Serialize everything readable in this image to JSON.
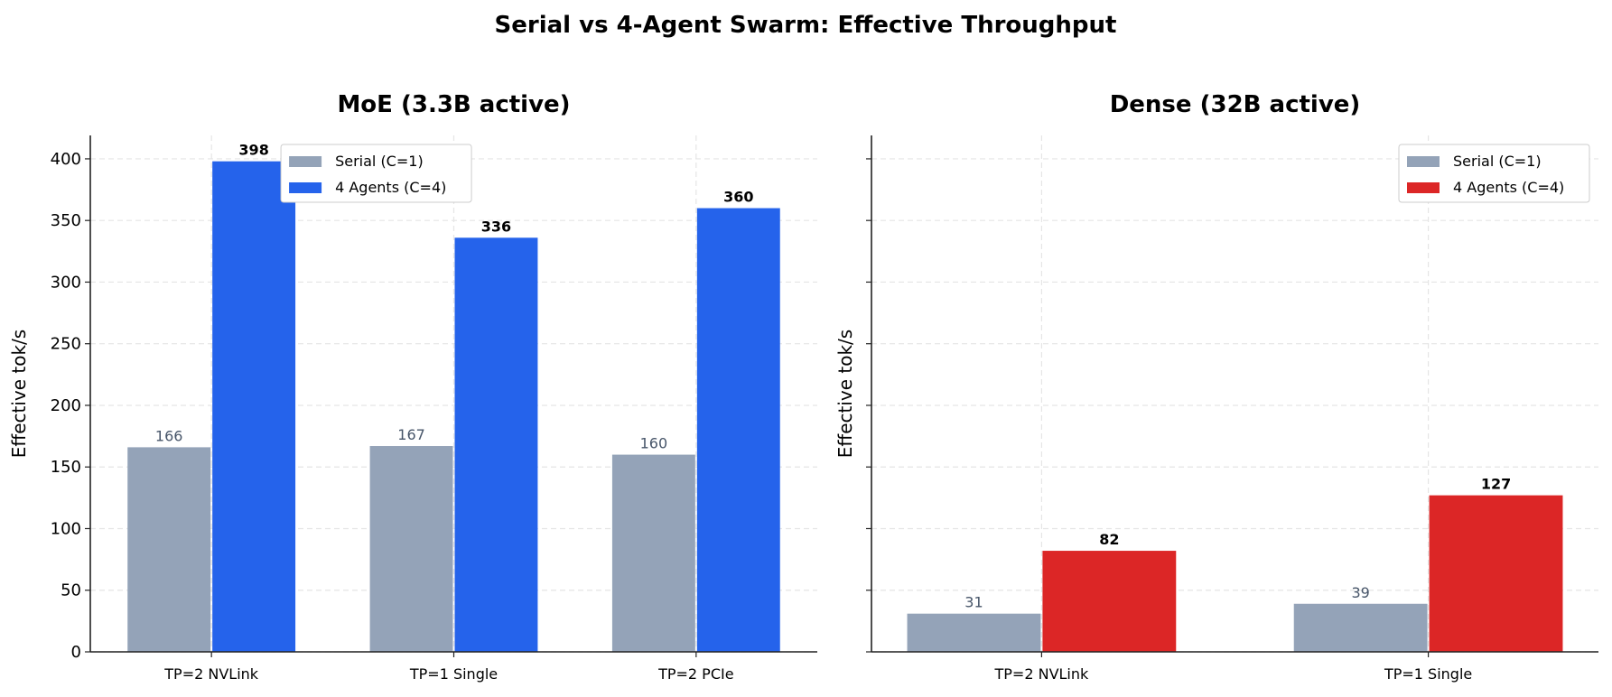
{
  "title": "Serial vs 4-Agent Swarm: Effective Throughput",
  "chart_data": [
    {
      "type": "bar",
      "title": "MoE (3.3B active)",
      "xlabel": "",
      "ylabel": "Effective tok/s",
      "categories": [
        "TP=2 NVLink",
        "TP=1 Single",
        "TP=2 PCIe"
      ],
      "ylim": [
        0,
        419
      ],
      "yticks": [
        0,
        50,
        100,
        150,
        200,
        250,
        300,
        350,
        400
      ],
      "show_ytick_labels": true,
      "grid": true,
      "legend_position": "top-center",
      "series": [
        {
          "name": "Serial (C=1)",
          "color": "#94a3b8",
          "values": [
            166,
            167,
            160
          ],
          "labels": [
            "166",
            "167",
            "160"
          ]
        },
        {
          "name": "4 Agents (C=4)",
          "color": "#2563eb",
          "values": [
            398,
            336,
            360
          ],
          "labels": [
            "398",
            "336",
            "360"
          ]
        }
      ]
    },
    {
      "type": "bar",
      "title": "Dense (32B active)",
      "xlabel": "",
      "ylabel": "Effective tok/s",
      "categories": [
        "TP=2 NVLink",
        "TP=1 Single"
      ],
      "ylim": [
        0,
        419
      ],
      "yticks": [
        0,
        50,
        100,
        150,
        200,
        250,
        300,
        350,
        400
      ],
      "show_ytick_labels": false,
      "grid": true,
      "legend_position": "top-right",
      "series": [
        {
          "name": "Serial (C=1)",
          "color": "#94a3b8",
          "values": [
            31,
            39
          ],
          "labels": [
            "31",
            "39"
          ]
        },
        {
          "name": "4 Agents (C=4)",
          "color": "#dc2626",
          "values": [
            82,
            127
          ],
          "labels": [
            "82",
            "127"
          ]
        }
      ]
    }
  ]
}
